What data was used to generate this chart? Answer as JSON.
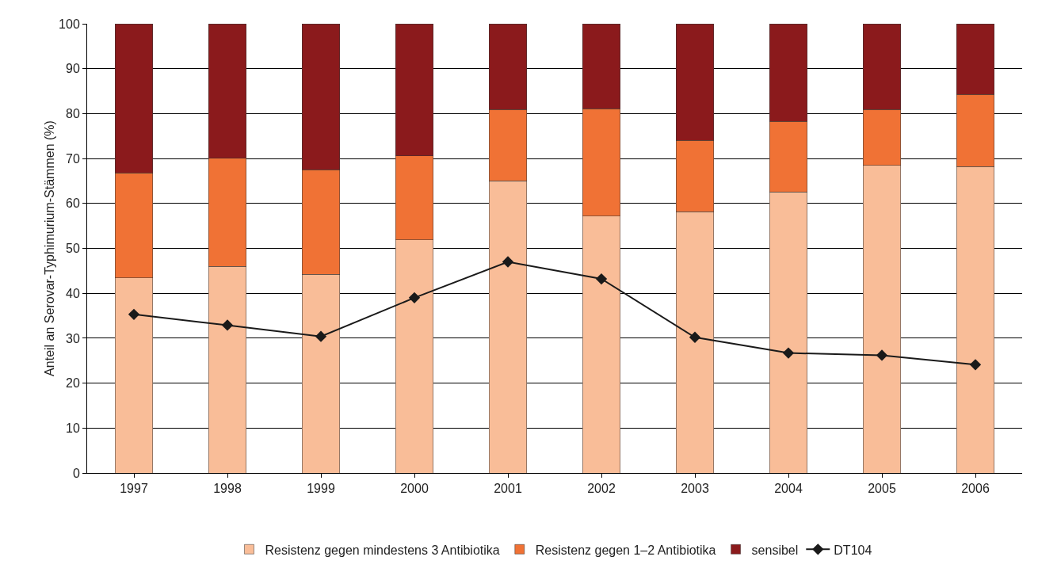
{
  "chart_data": {
    "type": "bar",
    "stacked": true,
    "ylabel": "Anteil an Serovar-Typhimurium-Stämmen (%)",
    "categories": [
      "1997",
      "1998",
      "1999",
      "2000",
      "2001",
      "2002",
      "2003",
      "2004",
      "2005",
      "2006"
    ],
    "series": [
      {
        "name": "Resistenz gegen mindestens 3 Antibiotika",
        "color": "#f9bd98",
        "values": [
          43.4,
          46.0,
          44.2,
          51.9,
          65.0,
          57.2,
          58.2,
          62.6,
          68.5,
          68.2
        ]
      },
      {
        "name": "Resistenz gegen 1–2 Antibiotika",
        "color": "#f07235",
        "values": [
          23.4,
          24.1,
          23.3,
          18.7,
          15.9,
          23.9,
          15.8,
          15.7,
          12.4,
          16.1
        ]
      },
      {
        "name": "sensibel",
        "color": "#8b1a1c",
        "values": [
          33.2,
          29.9,
          32.5,
          29.4,
          19.1,
          18.9,
          26.0,
          21.7,
          19.1,
          15.7
        ]
      },
      {
        "name": "DT104",
        "type": "line",
        "color": "#1a1a1a",
        "marker": "diamond",
        "values": [
          35.3,
          32.9,
          30.4,
          39.0,
          47.0,
          43.2,
          30.2,
          26.7,
          26.2,
          24.1
        ]
      }
    ],
    "ylim": [
      0,
      100
    ],
    "yticks": [
      0,
      10,
      20,
      30,
      40,
      50,
      60,
      70,
      80,
      90,
      100
    ],
    "grid": "y",
    "legend": "bottom"
  }
}
